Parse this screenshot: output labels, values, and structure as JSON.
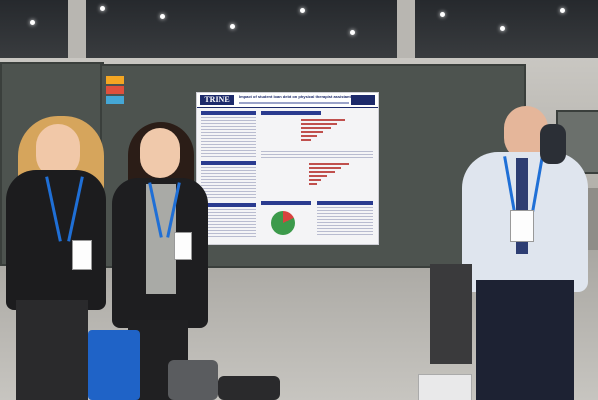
{
  "scene": {
    "description_tag": "conference-poster-session-photo"
  },
  "poster": {
    "logo_left": "TRINE",
    "title_line": "Impact of student loan debt on physical therapist assistants"
  },
  "colors": {
    "board": "#4d534f",
    "poster_accent": "#2a3b8f",
    "lanyard": "#1f6fd6",
    "pie_red": "#d8433f",
    "pie_green": "#3c9a4b"
  }
}
